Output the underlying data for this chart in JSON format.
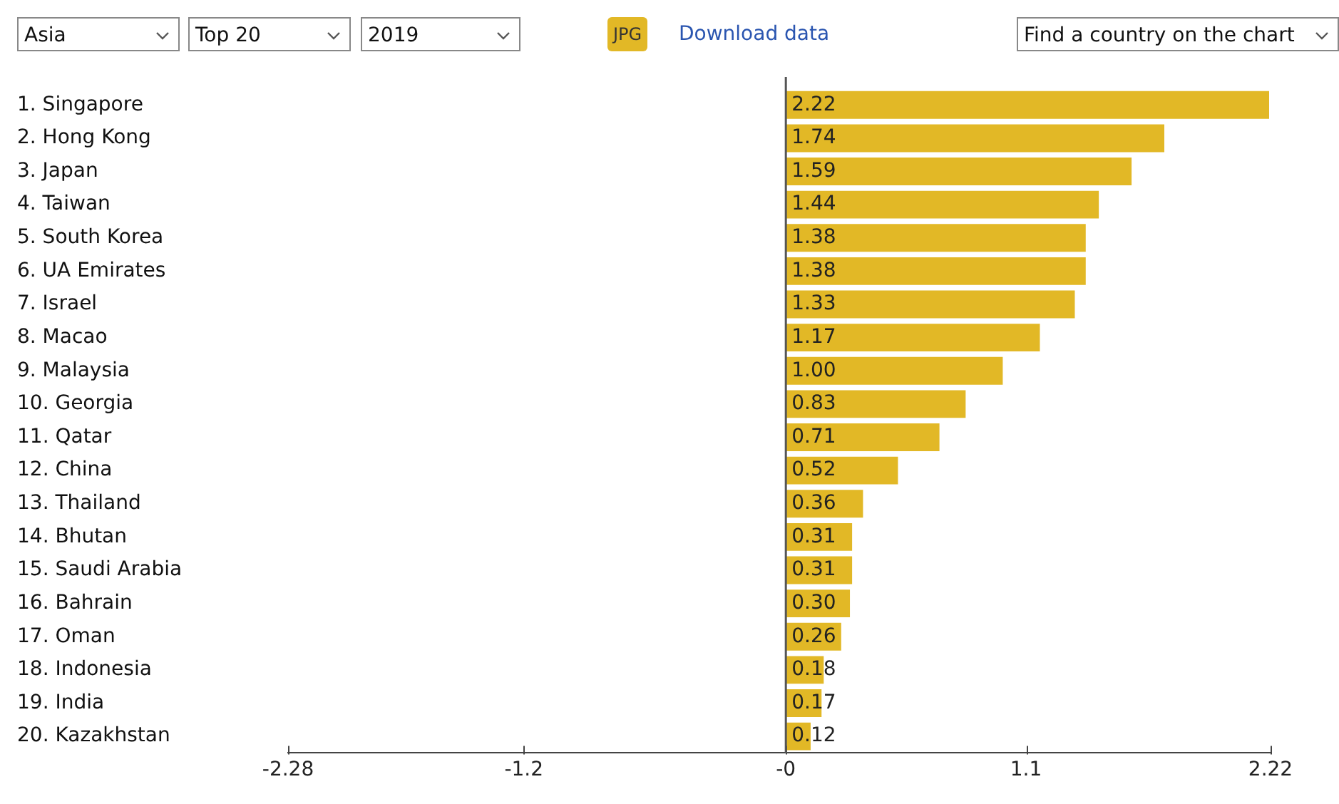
{
  "chart_data": {
    "type": "bar",
    "orientation": "horizontal",
    "categories": [
      "1. Singapore",
      "2. Hong Kong",
      "3. Japan",
      "4. Taiwan",
      "5. South Korea",
      "6. UA Emirates",
      "7. Israel",
      "8. Macao",
      "9. Malaysia",
      "10. Georgia",
      "11. Qatar",
      "12. China",
      "13. Thailand",
      "14. Bhutan",
      "15. Saudi Arabia",
      "16. Bahrain",
      "17. Oman",
      "18. Indonesia",
      "19. India",
      "20. Kazakhstan"
    ],
    "values": [
      2.22,
      1.74,
      1.59,
      1.44,
      1.38,
      1.38,
      1.33,
      1.17,
      1.0,
      0.83,
      0.71,
      0.52,
      0.36,
      0.31,
      0.31,
      0.3,
      0.26,
      0.18,
      0.17,
      0.12
    ],
    "value_labels": [
      "2.22",
      "1.74",
      "1.59",
      "1.44",
      "1.38",
      "1.38",
      "1.33",
      "1.17",
      "1.00",
      "0.83",
      "0.71",
      "0.52",
      "0.36",
      "0.31",
      "0.31",
      "0.30",
      "0.26",
      "0.18",
      "0.17",
      "0.12"
    ],
    "color": "#e2b826",
    "xlim": [
      -2.28,
      2.22
    ],
    "xticks": [
      -2.28,
      -1.2,
      {
        "value": 0,
        "label": "-0"
      },
      1.1,
      2.22
    ],
    "grid": false,
    "legend": false,
    "ref_lines": [
      {
        "axis": "x",
        "value": 0,
        "color": "#555555"
      }
    ],
    "annotations": [
      "Asia",
      "Top 20",
      "2019",
      "JPG",
      "Download data",
      "Find a country on the chart"
    ]
  }
}
